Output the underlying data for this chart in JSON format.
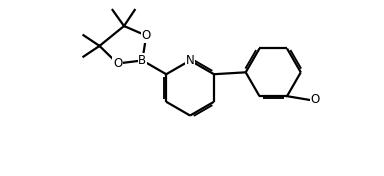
{
  "bg_color": "#ffffff",
  "line_color": "#000000",
  "line_width": 1.6,
  "font_size": 8.5,
  "figsize": [
    3.84,
    1.76
  ],
  "dpi": 100,
  "xlim": [
    0.0,
    10.0
  ],
  "ylim": [
    0.3,
    4.7
  ]
}
